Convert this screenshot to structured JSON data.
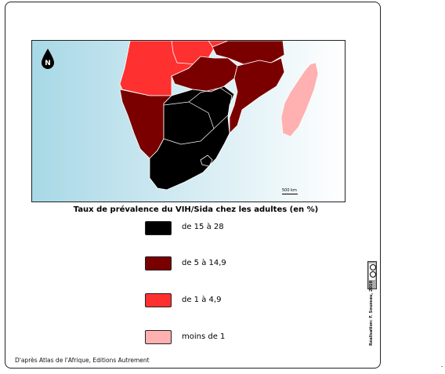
{
  "map": {
    "north_label": "N",
    "scale_label": "500 km",
    "colors": {
      "ocean_light": "#f4fbfd",
      "ocean_dark": "#a8d8e6",
      "class_1": "#000000",
      "class_2": "#7a0000",
      "class_3": "#ff3030",
      "class_4": "#ffb0b0",
      "border": "#ffffff"
    }
  },
  "legend": {
    "title": "Taux de prévalence du VIH/Sida chez les adultes (en %)",
    "items": [
      {
        "label": "de 15 à 28",
        "color": "#000000"
      },
      {
        "label": "de 5 à 14,9",
        "color": "#7a0000"
      },
      {
        "label": "de 1 à 4,9",
        "color": "#ff3030"
      },
      {
        "label": "moins de 1",
        "color": "#ffb0b0"
      }
    ]
  },
  "source": "D'après Atlas de l'Afrique, Editions Autrement",
  "credit": "Réalisation: F. Souzeau, 2019"
}
